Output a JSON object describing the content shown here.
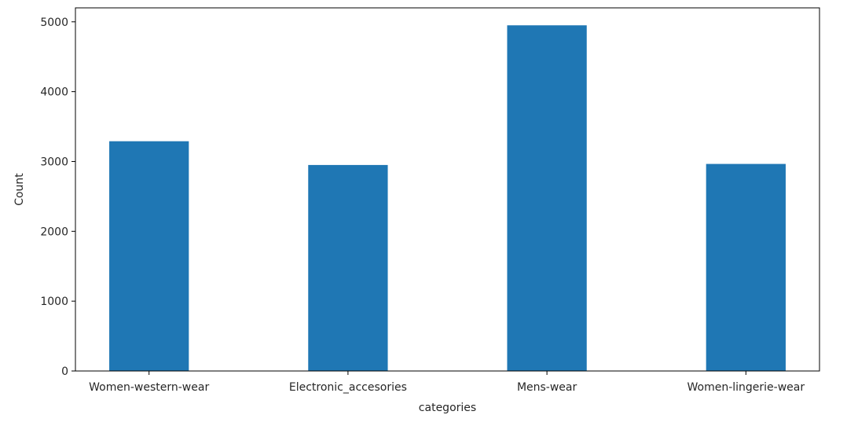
{
  "chart_data": {
    "type": "bar",
    "categories": [
      "Women-western-wear",
      "Electronic_accesories",
      "Mens-wear",
      "Women-lingerie-wear"
    ],
    "values": [
      3290,
      2950,
      4950,
      2965
    ],
    "xlabel": "categories",
    "ylabel": "Count",
    "ylim": [
      0,
      5200
    ],
    "yticks": [
      0,
      1000,
      2000,
      3000,
      4000,
      5000
    ],
    "grid": false,
    "bar_color": "#1f77b4",
    "axis_color": "#000000"
  }
}
